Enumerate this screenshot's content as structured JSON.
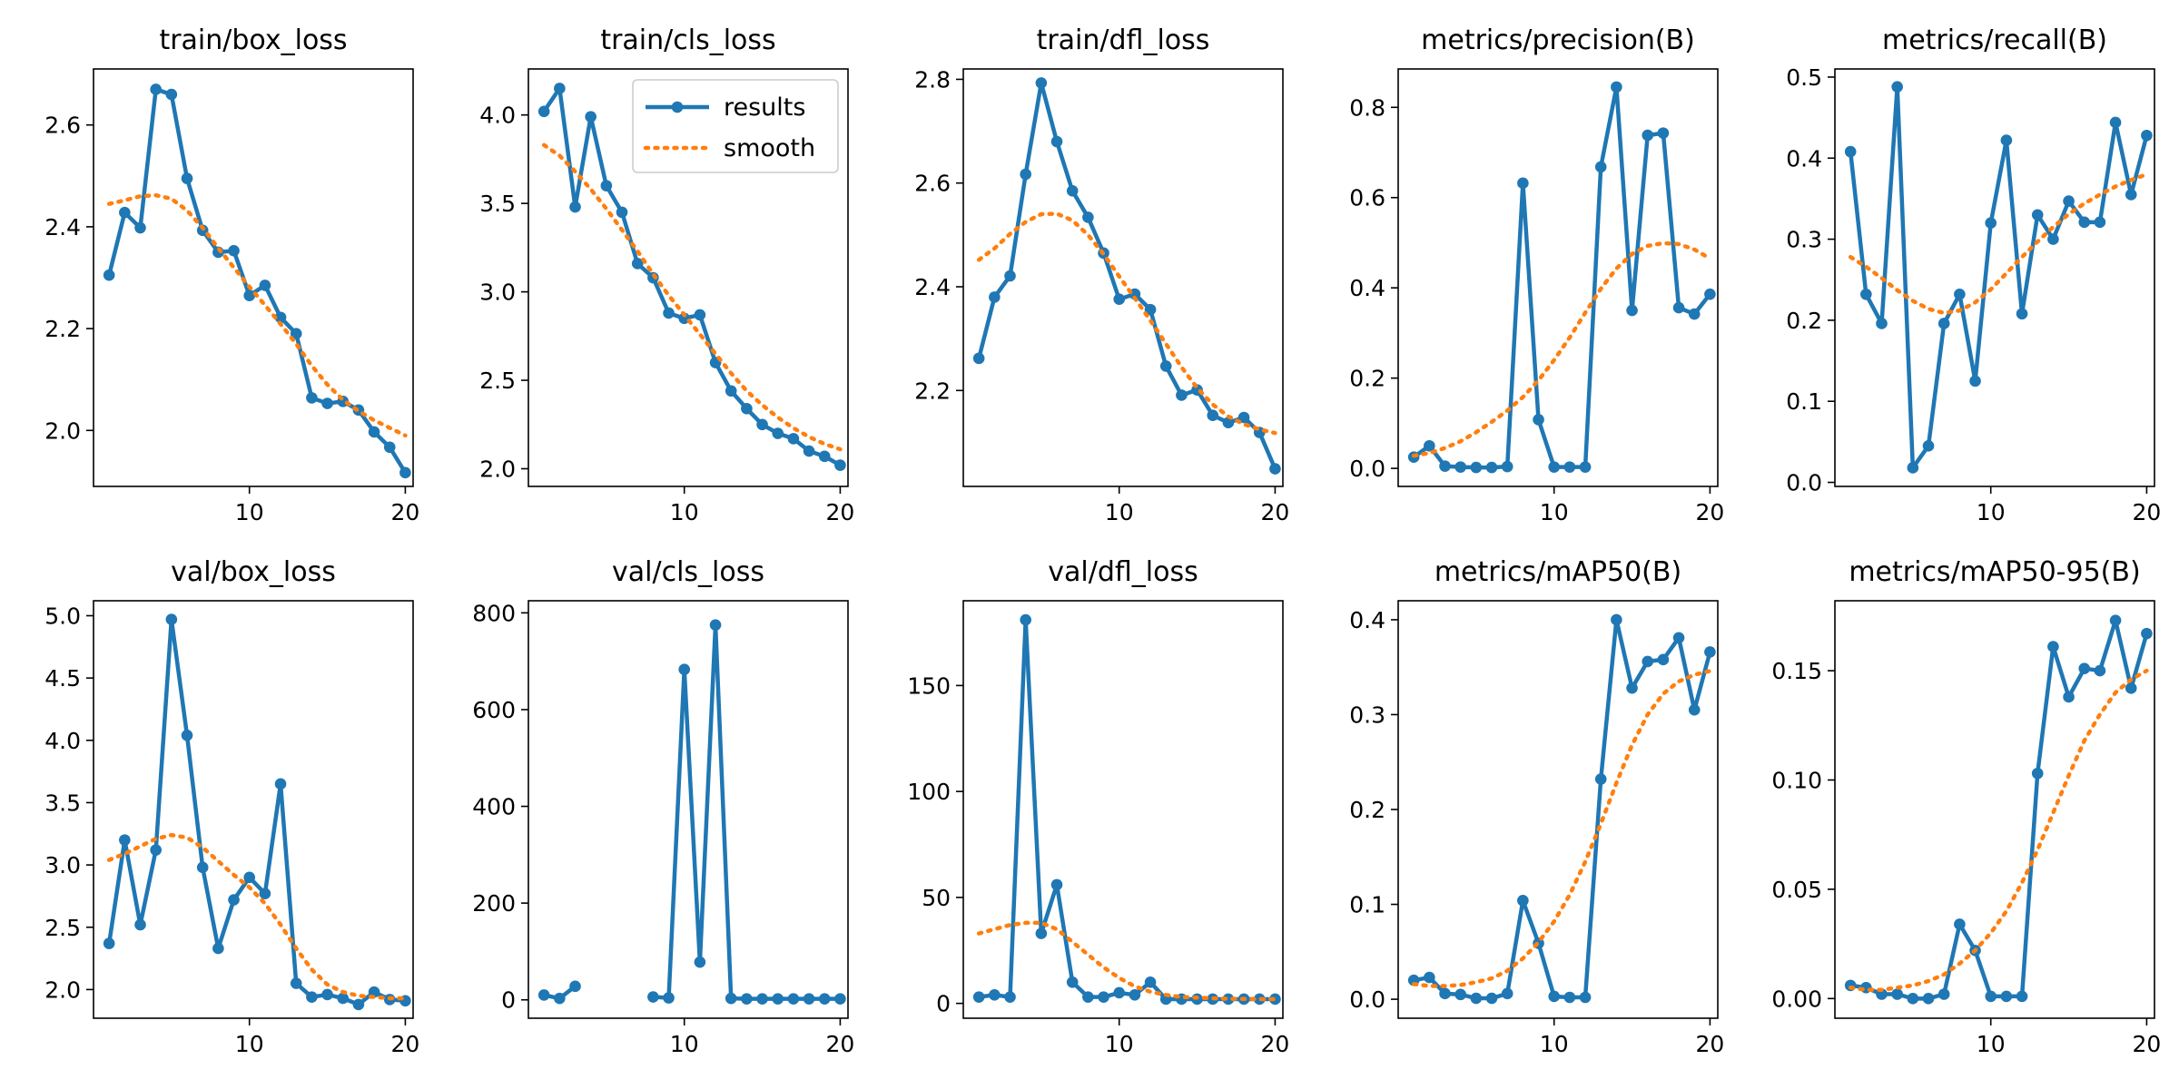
{
  "figure": {
    "background": "#ffffff"
  },
  "colors": {
    "results": "#1f77b4",
    "smooth": "#ff7f0e"
  },
  "chart_data": [
    {
      "type": "line",
      "title": "train/box_loss",
      "xlabel": "",
      "ylabel": "",
      "xlim": [
        0,
        20.5
      ],
      "ylim": [
        1.89,
        2.71
      ],
      "xticks": [
        10,
        20
      ],
      "yticks": [
        2.0,
        2.2,
        2.4,
        2.6
      ],
      "ytick_decimals": 1,
      "series": [
        {
          "name": "results",
          "x": [
            1,
            2,
            3,
            4,
            5,
            6,
            7,
            8,
            9,
            10,
            11,
            12,
            13,
            14,
            15,
            16,
            17,
            18,
            19,
            20
          ],
          "values": [
            2.305,
            2.428,
            2.398,
            2.67,
            2.66,
            2.495,
            2.393,
            2.35,
            2.353,
            2.265,
            2.285,
            2.222,
            2.19,
            2.064,
            2.053,
            2.057,
            2.04,
            1.997,
            1.967,
            1.917
          ]
        },
        {
          "name": "smooth",
          "x": [
            1,
            2,
            3,
            4,
            5,
            6,
            7,
            8,
            9,
            10,
            11,
            12,
            13,
            14,
            15,
            16,
            17,
            18,
            19,
            20
          ],
          "values": [
            2.445,
            2.452,
            2.46,
            2.462,
            2.455,
            2.432,
            2.398,
            2.358,
            2.32,
            2.282,
            2.246,
            2.209,
            2.17,
            2.127,
            2.09,
            2.06,
            2.038,
            2.02,
            2.005,
            1.99
          ]
        }
      ]
    },
    {
      "type": "line",
      "title": "train/cls_loss",
      "xlabel": "",
      "ylabel": "",
      "xlim": [
        0,
        20.5
      ],
      "ylim": [
        1.9,
        4.26
      ],
      "xticks": [
        10,
        20
      ],
      "yticks": [
        2.0,
        2.5,
        3.0,
        3.5,
        4.0
      ],
      "ytick_decimals": 1,
      "legend": {
        "location": "top-right",
        "entries": [
          "results",
          "smooth"
        ]
      },
      "series": [
        {
          "name": "results",
          "x": [
            1,
            2,
            3,
            4,
            5,
            6,
            7,
            8,
            9,
            10,
            11,
            12,
            13,
            14,
            15,
            16,
            17,
            18,
            19,
            20
          ],
          "values": [
            4.02,
            4.15,
            3.48,
            3.99,
            3.6,
            3.45,
            3.16,
            3.08,
            2.88,
            2.85,
            2.87,
            2.6,
            2.44,
            2.34,
            2.25,
            2.2,
            2.17,
            2.1,
            2.07,
            2.02
          ]
        },
        {
          "name": "smooth",
          "x": [
            1,
            2,
            3,
            4,
            5,
            6,
            7,
            8,
            9,
            10,
            11,
            12,
            13,
            14,
            15,
            16,
            17,
            18,
            19,
            20
          ],
          "values": [
            3.83,
            3.77,
            3.68,
            3.58,
            3.47,
            3.35,
            3.23,
            3.1,
            2.98,
            2.87,
            2.76,
            2.65,
            2.54,
            2.44,
            2.36,
            2.29,
            2.23,
            2.18,
            2.14,
            2.11
          ]
        }
      ]
    },
    {
      "type": "line",
      "title": "train/dfl_loss",
      "xlabel": "",
      "ylabel": "",
      "xlim": [
        0,
        20.5
      ],
      "ylim": [
        2.015,
        2.82
      ],
      "xticks": [
        10,
        20
      ],
      "yticks": [
        2.2,
        2.4,
        2.6,
        2.8
      ],
      "ytick_decimals": 1,
      "series": [
        {
          "name": "results",
          "x": [
            1,
            2,
            3,
            4,
            5,
            6,
            7,
            8,
            9,
            10,
            11,
            12,
            13,
            14,
            15,
            16,
            17,
            18,
            19,
            20
          ],
          "values": [
            2.262,
            2.38,
            2.421,
            2.617,
            2.793,
            2.68,
            2.585,
            2.534,
            2.465,
            2.376,
            2.386,
            2.356,
            2.247,
            2.191,
            2.201,
            2.152,
            2.138,
            2.148,
            2.119,
            2.049
          ]
        },
        {
          "name": "smooth",
          "x": [
            1,
            2,
            3,
            4,
            5,
            6,
            7,
            8,
            9,
            10,
            11,
            12,
            13,
            14,
            15,
            16,
            17,
            18,
            19,
            20
          ],
          "values": [
            2.452,
            2.474,
            2.502,
            2.525,
            2.54,
            2.541,
            2.528,
            2.5,
            2.463,
            2.42,
            2.378,
            2.335,
            2.29,
            2.245,
            2.205,
            2.173,
            2.15,
            2.135,
            2.125,
            2.118
          ]
        }
      ]
    },
    {
      "type": "line",
      "title": "metrics/precision(B)",
      "xlabel": "",
      "ylabel": "",
      "xlim": [
        0,
        20.5
      ],
      "ylim": [
        -0.04,
        0.885
      ],
      "xticks": [
        10,
        20
      ],
      "yticks": [
        0.0,
        0.2,
        0.4,
        0.6,
        0.8
      ],
      "ytick_decimals": 1,
      "series": [
        {
          "name": "results",
          "x": [
            1,
            2,
            3,
            4,
            5,
            6,
            7,
            8,
            9,
            10,
            11,
            12,
            13,
            14,
            15,
            16,
            17,
            18,
            19,
            20
          ],
          "values": [
            0.025,
            0.05,
            0.005,
            0.003,
            0.002,
            0.002,
            0.004,
            0.632,
            0.108,
            0.003,
            0.003,
            0.003,
            0.668,
            0.845,
            0.35,
            0.738,
            0.743,
            0.356,
            0.342,
            0.386
          ]
        },
        {
          "name": "smooth",
          "x": [
            1,
            2,
            3,
            4,
            5,
            6,
            7,
            8,
            9,
            10,
            11,
            12,
            13,
            14,
            15,
            16,
            17,
            18,
            19,
            20
          ],
          "values": [
            0.028,
            0.034,
            0.045,
            0.06,
            0.08,
            0.103,
            0.128,
            0.158,
            0.195,
            0.24,
            0.29,
            0.345,
            0.398,
            0.443,
            0.475,
            0.493,
            0.499,
            0.497,
            0.485,
            0.465
          ]
        }
      ]
    },
    {
      "type": "line",
      "title": "metrics/recall(B)",
      "xlabel": "",
      "ylabel": "",
      "xlim": [
        0,
        20.5
      ],
      "ylim": [
        -0.005,
        0.51
      ],
      "xticks": [
        10,
        20
      ],
      "yticks": [
        0.0,
        0.1,
        0.2,
        0.3,
        0.4,
        0.5
      ],
      "ytick_decimals": 1,
      "series": [
        {
          "name": "results",
          "x": [
            1,
            2,
            3,
            4,
            5,
            6,
            7,
            8,
            9,
            10,
            11,
            12,
            13,
            14,
            15,
            16,
            17,
            18,
            19,
            20
          ],
          "values": [
            0.408,
            0.232,
            0.196,
            0.488,
            0.018,
            0.045,
            0.196,
            0.232,
            0.125,
            0.32,
            0.422,
            0.208,
            0.33,
            0.3,
            0.347,
            0.321,
            0.321,
            0.444,
            0.355,
            0.428
          ]
        },
        {
          "name": "smooth",
          "x": [
            1,
            2,
            3,
            4,
            5,
            6,
            7,
            8,
            9,
            10,
            11,
            12,
            13,
            14,
            15,
            16,
            17,
            18,
            19,
            20
          ],
          "values": [
            0.278,
            0.266,
            0.252,
            0.237,
            0.224,
            0.214,
            0.209,
            0.212,
            0.222,
            0.238,
            0.258,
            0.278,
            0.297,
            0.315,
            0.331,
            0.344,
            0.355,
            0.365,
            0.373,
            0.38
          ]
        }
      ]
    },
    {
      "type": "line",
      "title": "val/box_loss",
      "xlabel": "",
      "ylabel": "",
      "xlim": [
        0,
        20.5
      ],
      "ylim": [
        1.77,
        5.12
      ],
      "xticks": [
        10,
        20
      ],
      "yticks": [
        2.0,
        2.5,
        3.0,
        3.5,
        4.0,
        4.5,
        5.0
      ],
      "ytick_decimals": 1,
      "series": [
        {
          "name": "results",
          "x": [
            1,
            2,
            3,
            4,
            5,
            6,
            7,
            8,
            9,
            10,
            11,
            12,
            13,
            14,
            15,
            16,
            17,
            18,
            19,
            20
          ],
          "values": [
            2.37,
            3.2,
            2.52,
            3.12,
            4.97,
            4.04,
            2.98,
            2.33,
            2.72,
            2.9,
            2.77,
            3.65,
            2.05,
            1.94,
            1.96,
            1.93,
            1.88,
            1.98,
            1.92,
            1.91
          ]
        },
        {
          "name": "smooth",
          "x": [
            1,
            2,
            3,
            4,
            5,
            6,
            7,
            8,
            9,
            10,
            11,
            12,
            13,
            14,
            15,
            16,
            17,
            18,
            19,
            20
          ],
          "values": [
            3.04,
            3.09,
            3.15,
            3.21,
            3.24,
            3.22,
            3.14,
            3.03,
            2.92,
            2.82,
            2.69,
            2.52,
            2.33,
            2.16,
            2.04,
            1.98,
            1.95,
            1.94,
            1.93,
            1.93
          ]
        }
      ]
    },
    {
      "type": "line",
      "title": "val/cls_loss",
      "xlabel": "",
      "ylabel": "",
      "xlim": [
        0,
        20.5
      ],
      "ylim": [
        -38,
        825
      ],
      "xticks": [
        10,
        20
      ],
      "yticks": [
        0,
        200,
        400,
        600,
        800
      ],
      "ytick_decimals": 0,
      "series": [
        {
          "name": "results",
          "x": [
            1,
            2,
            3,
            null,
            null,
            null,
            null,
            8,
            9,
            10,
            11,
            12,
            13,
            14,
            15,
            16,
            17,
            18,
            19,
            20
          ],
          "values": [
            10,
            3,
            28,
            null,
            null,
            null,
            null,
            6,
            4,
            683,
            78,
            775,
            3,
            2,
            2,
            2,
            2,
            2,
            2,
            2
          ]
        }
      ]
    },
    {
      "type": "line",
      "title": "val/dfl_loss",
      "xlabel": "",
      "ylabel": "",
      "xlim": [
        0,
        20.5
      ],
      "ylim": [
        -7,
        190
      ],
      "xticks": [
        10,
        20
      ],
      "yticks": [
        0,
        50,
        100,
        150
      ],
      "ytick_decimals": 0,
      "series": [
        {
          "name": "results",
          "x": [
            1,
            2,
            3,
            4,
            5,
            6,
            7,
            8,
            9,
            10,
            11,
            12,
            13,
            14,
            15,
            16,
            17,
            18,
            19,
            20
          ],
          "values": [
            3,
            4,
            3,
            181,
            33,
            56,
            10,
            3,
            3,
            5,
            4,
            10,
            2,
            2,
            2,
            2,
            2,
            2,
            2,
            2
          ]
        },
        {
          "name": "smooth",
          "x": [
            1,
            2,
            3,
            4,
            5,
            6,
            7,
            8,
            9,
            10,
            11,
            12,
            13,
            14,
            15,
            16,
            17,
            18,
            19,
            20
          ],
          "values": [
            33,
            35,
            37,
            38,
            38,
            35,
            29,
            23,
            17,
            12,
            8,
            5.5,
            4,
            3,
            2.7,
            2.4,
            2.2,
            2.1,
            2.0,
            2.0
          ]
        }
      ]
    },
    {
      "type": "line",
      "title": "metrics/mAP50(B)",
      "xlabel": "",
      "ylabel": "",
      "xlim": [
        0,
        20.5
      ],
      "ylim": [
        -0.02,
        0.42
      ],
      "xticks": [
        10,
        20
      ],
      "yticks": [
        0.0,
        0.1,
        0.2,
        0.3,
        0.4
      ],
      "ytick_decimals": 1,
      "series": [
        {
          "name": "results",
          "x": [
            1,
            2,
            3,
            4,
            5,
            6,
            7,
            8,
            9,
            10,
            11,
            12,
            13,
            14,
            15,
            16,
            17,
            18,
            19,
            20
          ],
          "values": [
            0.02,
            0.023,
            0.006,
            0.005,
            0.001,
            0.001,
            0.006,
            0.104,
            0.059,
            0.003,
            0.002,
            0.002,
            0.232,
            0.4,
            0.328,
            0.356,
            0.358,
            0.381,
            0.305,
            0.366
          ]
        },
        {
          "name": "smooth",
          "x": [
            1,
            2,
            3,
            4,
            5,
            6,
            7,
            8,
            9,
            10,
            11,
            12,
            13,
            14,
            15,
            16,
            17,
            18,
            19,
            20
          ],
          "values": [
            0.016,
            0.014,
            0.014,
            0.015,
            0.018,
            0.022,
            0.03,
            0.043,
            0.06,
            0.082,
            0.11,
            0.145,
            0.185,
            0.228,
            0.268,
            0.3,
            0.322,
            0.335,
            0.342,
            0.346
          ]
        }
      ]
    },
    {
      "type": "line",
      "title": "metrics/mAP50-95(B)",
      "xlabel": "",
      "ylabel": "",
      "xlim": [
        0,
        20.5
      ],
      "ylim": [
        -0.009,
        0.182
      ],
      "xticks": [
        10,
        20
      ],
      "yticks": [
        0.0,
        0.05,
        0.1,
        0.15
      ],
      "ytick_decimals": 2,
      "series": [
        {
          "name": "results",
          "x": [
            1,
            2,
            3,
            4,
            5,
            6,
            7,
            8,
            9,
            10,
            11,
            12,
            13,
            14,
            15,
            16,
            17,
            18,
            19,
            20
          ],
          "values": [
            0.006,
            0.005,
            0.002,
            0.002,
            0.0,
            0.0,
            0.002,
            0.034,
            0.022,
            0.001,
            0.001,
            0.001,
            0.103,
            0.161,
            0.138,
            0.151,
            0.15,
            0.173,
            0.142,
            0.167
          ]
        },
        {
          "name": "smooth",
          "x": [
            1,
            2,
            3,
            4,
            5,
            6,
            7,
            8,
            9,
            10,
            11,
            12,
            13,
            14,
            15,
            16,
            17,
            18,
            19,
            20
          ],
          "values": [
            0.005,
            0.004,
            0.004,
            0.005,
            0.006,
            0.008,
            0.011,
            0.016,
            0.022,
            0.03,
            0.04,
            0.053,
            0.068,
            0.085,
            0.102,
            0.118,
            0.13,
            0.14,
            0.146,
            0.15
          ]
        }
      ]
    }
  ]
}
